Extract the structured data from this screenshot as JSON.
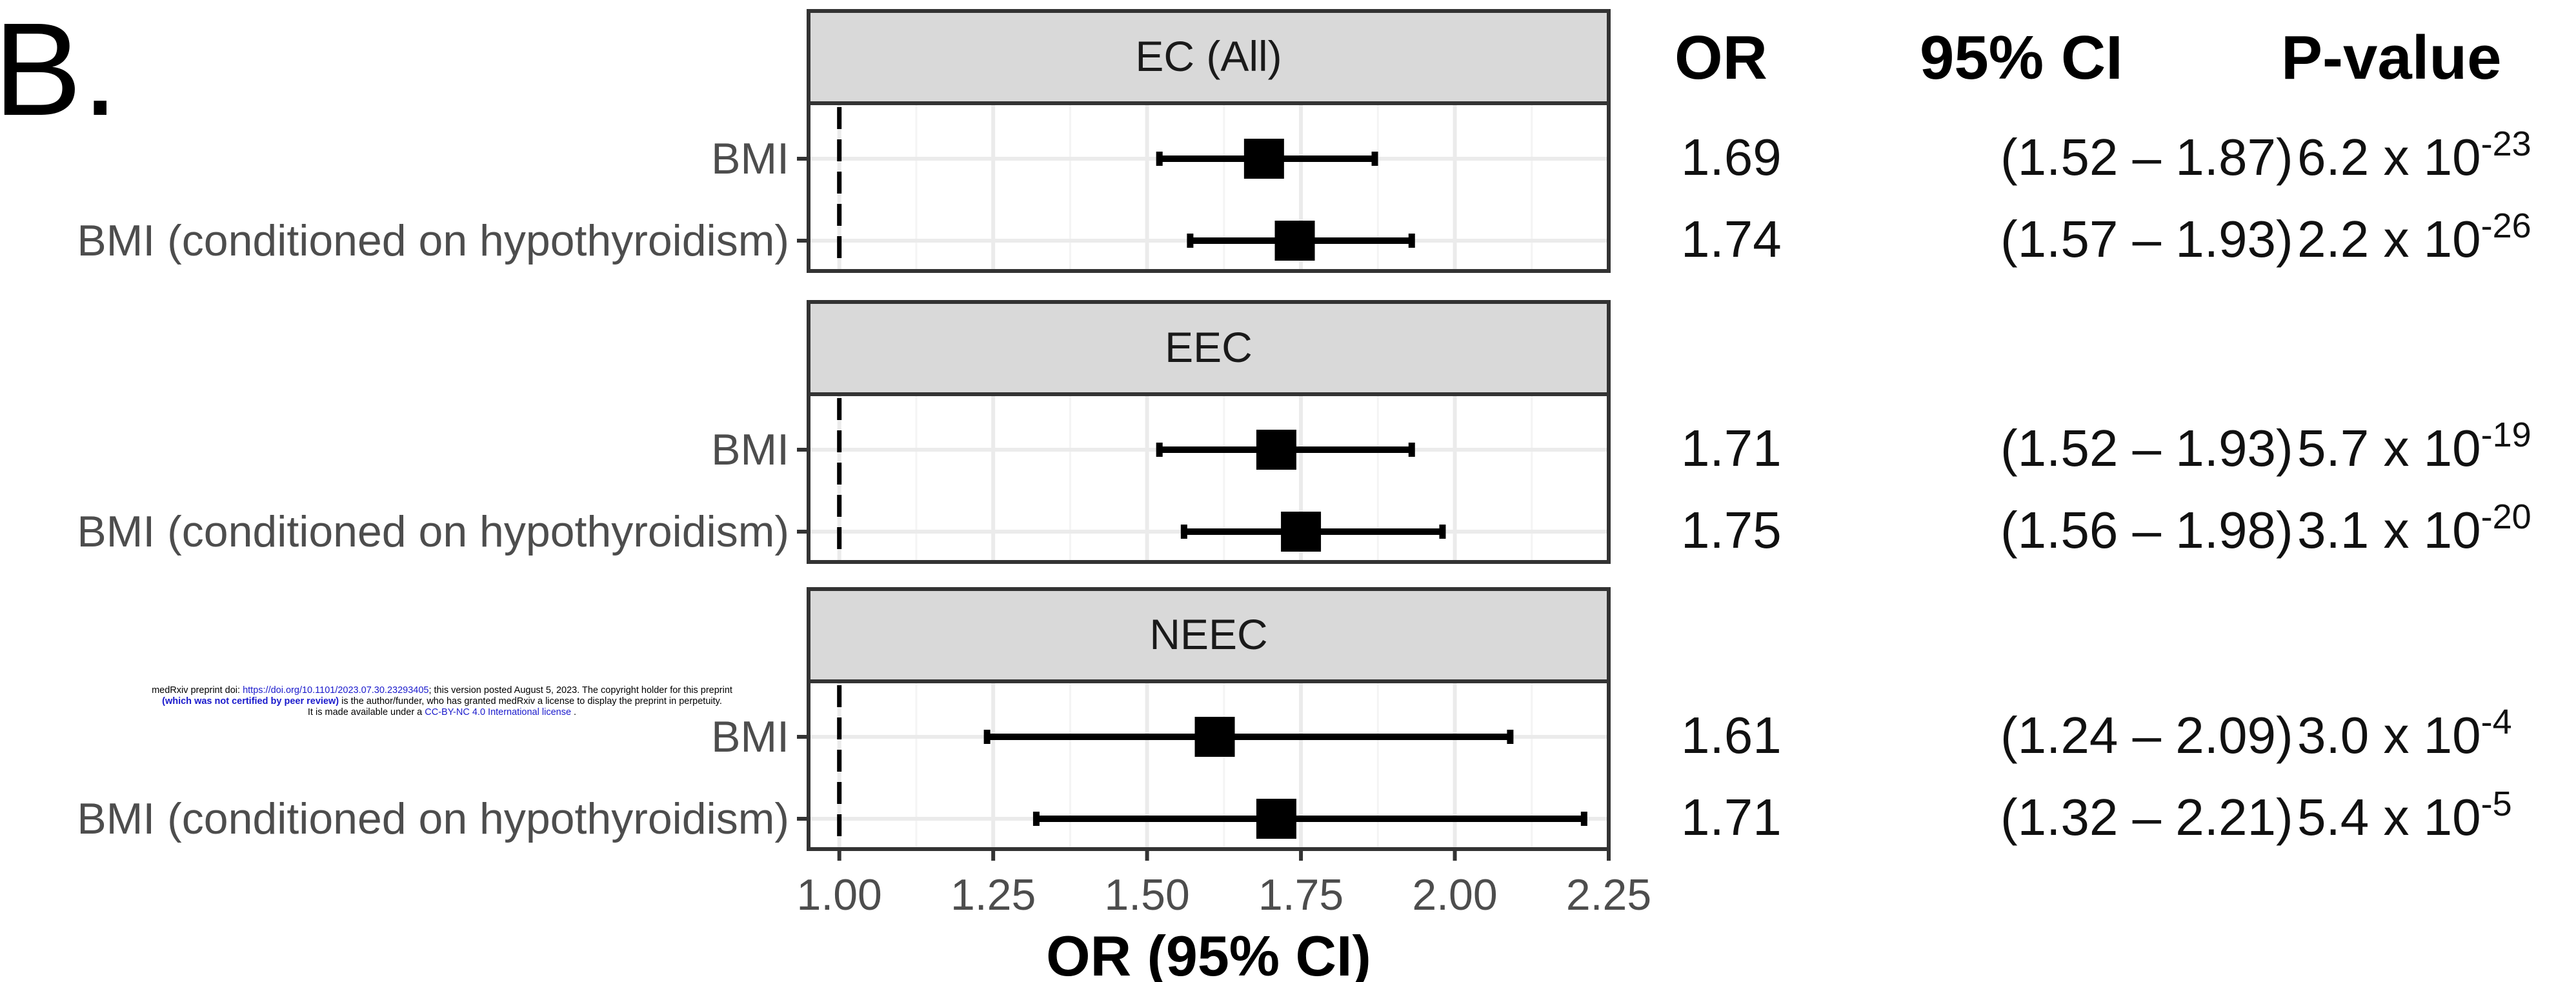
{
  "figure_label": "B.",
  "chart_data": {
    "type": "forest",
    "xlabel": "OR (95% CI)",
    "xlim": [
      0.95,
      2.25
    ],
    "x_ticks": [
      "1.00",
      "1.25",
      "1.50",
      "1.75",
      "2.00",
      "2.25"
    ],
    "reference_line": 1.0,
    "column_headers": {
      "or": "OR",
      "ci": "95% CI",
      "p": "P-value"
    },
    "panels": [
      {
        "name": "EC (All)",
        "rows": [
          {
            "label": "BMI",
            "or": 1.69,
            "ci_low": 1.52,
            "ci_high": 1.87,
            "or_text": "1.69",
            "ci_text": "(1.52 – 1.87)",
            "p_base": "6.2 x 10",
            "p_exp": "-23"
          },
          {
            "label": "BMI (conditioned on hypothyroidism)",
            "or": 1.74,
            "ci_low": 1.57,
            "ci_high": 1.93,
            "or_text": "1.74",
            "ci_text": "(1.57 – 1.93)",
            "p_base": "2.2 x 10",
            "p_exp": "-26"
          }
        ]
      },
      {
        "name": "EEC",
        "rows": [
          {
            "label": "BMI",
            "or": 1.71,
            "ci_low": 1.52,
            "ci_high": 1.93,
            "or_text": "1.71",
            "ci_text": "(1.52 – 1.93)",
            "p_base": "5.7 x 10",
            "p_exp": "-19"
          },
          {
            "label": "BMI (conditioned on hypothyroidism)",
            "or": 1.75,
            "ci_low": 1.56,
            "ci_high": 1.98,
            "or_text": "1.75",
            "ci_text": "(1.56 – 1.98)",
            "p_base": "3.1 x 10",
            "p_exp": "-20"
          }
        ]
      },
      {
        "name": "NEEC",
        "rows": [
          {
            "label": "BMI",
            "or": 1.61,
            "ci_low": 1.24,
            "ci_high": 2.09,
            "or_text": "1.61",
            "ci_text": "(1.24 – 2.09)",
            "p_base": "3.0 x 10",
            "p_exp": "-4"
          },
          {
            "label": "BMI (conditioned on hypothyroidism)",
            "or": 1.71,
            "ci_low": 1.32,
            "ci_high": 2.21,
            "or_text": "1.71",
            "ci_text": "(1.32 – 2.21)",
            "p_base": "5.4 x 10",
            "p_exp": "-5"
          }
        ]
      }
    ],
    "colors": {
      "strip_fill": "#d9d9d9",
      "panel_border": "#333333",
      "grid": "#ebebeb",
      "marker": "#000000",
      "tick_text": "#4d4d4d"
    }
  },
  "watermark": {
    "line1_prefix": "medRxiv preprint doi: ",
    "line1_link": "https://doi.org/10.1101/2023.07.30.23293405",
    "line1_suffix": "; this version posted August 5, 2023. The copyright holder for this preprint",
    "line2_bold": "(which was not certified by peer review)",
    "line2_rest": " is the author/funder, who has granted medRxiv a license to display the preprint in perpetuity.",
    "line3_prefix": "It is made available under a ",
    "line3_link": "CC-BY-NC 4.0 International license",
    "line3_suffix": " ."
  }
}
